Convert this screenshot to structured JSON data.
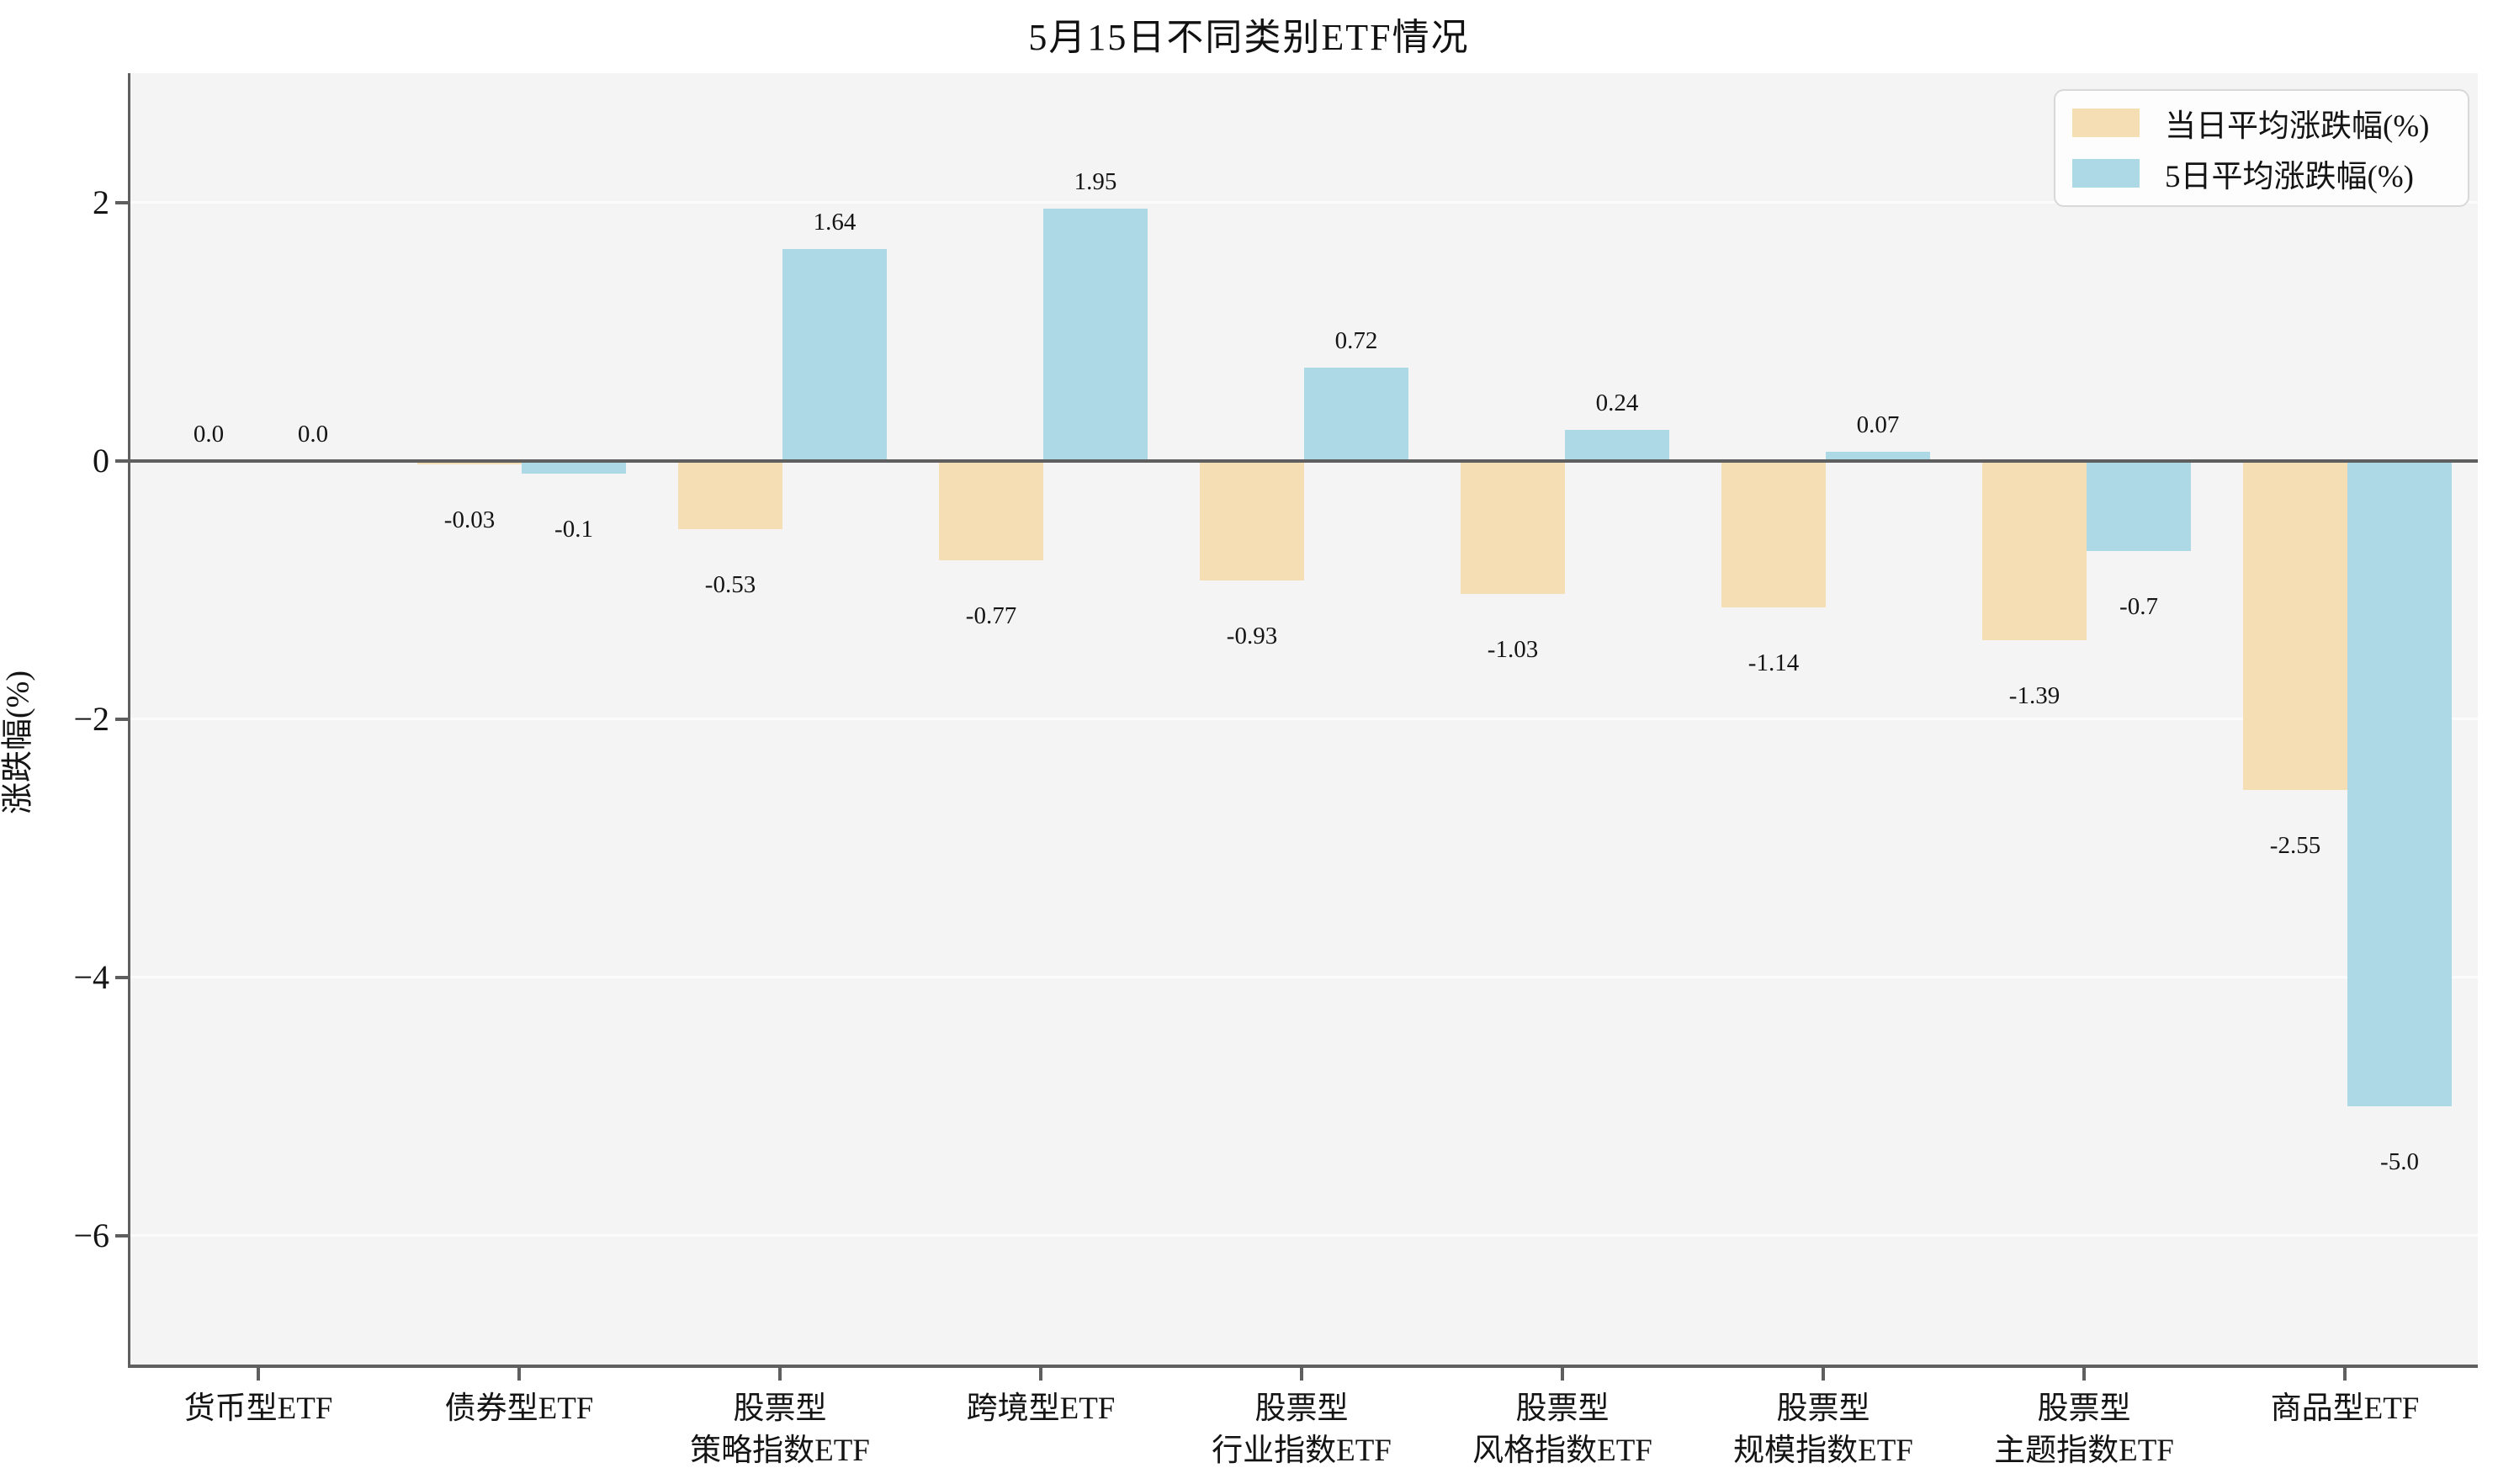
{
  "title": "5月15日不同类别ETF情况",
  "chart_data": {
    "type": "bar",
    "title": "5月15日不同类别ETF情况",
    "xlabel": "",
    "ylabel": "涨跌幅(%)",
    "ylim": [
      -7,
      3
    ],
    "ytick_values": [
      2,
      0,
      -2,
      -4,
      -6
    ],
    "ytick_labels": [
      "2",
      "0",
      "−2",
      "−4",
      "−6"
    ],
    "grid": true,
    "legend_position": "upper right",
    "plot_background": "#f4f4f4",
    "gridline_color": "#fbfbfb",
    "axis_color": "#5f5f5f",
    "categories": [
      "货币型ETF",
      "债券型ETF",
      "股票型\n策略指数ETF",
      "跨境型ETF",
      "股票型\n行业指数ETF",
      "股票型\n风格指数ETF",
      "股票型\n规模指数ETF",
      "股票型\n主题指数ETF",
      "商品型ETF"
    ],
    "series": [
      {
        "name": "当日平均涨跌幅(%)",
        "color": "#F5DEB3",
        "values": [
          0.0,
          -0.03,
          -0.53,
          -0.77,
          -0.93,
          -1.03,
          -1.14,
          -1.39,
          -2.55
        ],
        "labels": [
          "0.0",
          "-0.03",
          "-0.53",
          "-0.77",
          "-0.93",
          "-1.03",
          "-1.14",
          "-1.39",
          "-2.55"
        ]
      },
      {
        "name": "5日平均涨跌幅(%)",
        "color": "#ADD8E6",
        "values": [
          0.0,
          -0.1,
          1.64,
          1.95,
          0.72,
          0.24,
          0.07,
          -0.7,
          -5.0
        ],
        "labels": [
          "0.0",
          "-0.1",
          "1.64",
          "1.95",
          "0.72",
          "0.24",
          "0.07",
          "-0.7",
          "-5.0"
        ]
      }
    ]
  }
}
